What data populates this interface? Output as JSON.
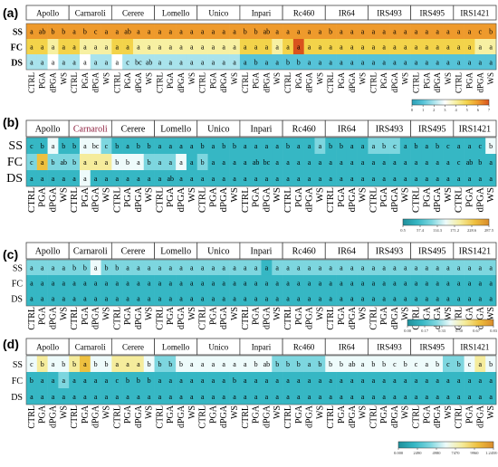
{
  "panels": [
    {
      "label": "(a)",
      "color_scale": "a",
      "colorbar_ticks": [
        "0",
        "1",
        "2",
        "3",
        "4",
        "5",
        "6",
        "7"
      ],
      "heat": [
        [
          6,
          6,
          6,
          6,
          6,
          6,
          6,
          6,
          6,
          6,
          6,
          6,
          6,
          6,
          6,
          6,
          6,
          6,
          6,
          6,
          6,
          6,
          6,
          6,
          6,
          6,
          6,
          6,
          6,
          6,
          6,
          6,
          6,
          6,
          6,
          6,
          6,
          6,
          6,
          6,
          6,
          6,
          6,
          6
        ],
        [
          5,
          5,
          4,
          5,
          5,
          4,
          4,
          4,
          5,
          5,
          4,
          4,
          4,
          4,
          4,
          4,
          4,
          4,
          4,
          4,
          5,
          5,
          5,
          4,
          5,
          7,
          5,
          5,
          5,
          5,
          5,
          5,
          5,
          5,
          5,
          5,
          5,
          5,
          5,
          5,
          5,
          5,
          4,
          4
        ],
        [
          2,
          2,
          3,
          2,
          2,
          3,
          2,
          2,
          3,
          2,
          2,
          2,
          2,
          2,
          2,
          2,
          2,
          2,
          2,
          2,
          1,
          1,
          1,
          1,
          1,
          1,
          1,
          1,
          1,
          1,
          1,
          1,
          1,
          1,
          1,
          1,
          1,
          1,
          1,
          1,
          1,
          1,
          1,
          1
        ]
      ]
    },
    {
      "label": "(b)",
      "color_scale": "b",
      "colorbar_ticks": [
        "0.5",
        "57.4",
        "114.3",
        "171.2",
        "228.6",
        "287.5"
      ],
      "heat": [
        [
          1,
          1,
          3,
          1,
          1,
          3,
          3,
          2,
          1,
          1,
          1,
          1,
          1,
          1,
          1,
          1,
          1,
          1,
          1,
          1,
          1,
          1,
          1,
          1,
          1,
          1,
          1,
          2,
          1,
          1,
          1,
          1,
          2,
          2,
          2,
          1,
          1,
          1,
          1,
          1,
          1,
          1,
          1,
          3
        ],
        [
          2,
          5,
          2,
          2,
          2,
          4,
          4,
          4,
          3,
          3,
          3,
          2,
          2,
          2,
          3,
          1,
          2,
          1,
          1,
          1,
          1,
          1,
          1,
          1,
          1,
          1,
          1,
          1,
          1,
          1,
          1,
          1,
          1,
          1,
          1,
          1,
          1,
          1,
          1,
          1,
          1,
          1,
          1,
          1
        ],
        [
          1,
          1,
          1,
          1,
          1,
          3,
          1,
          1,
          1,
          1,
          1,
          1,
          1,
          1,
          1,
          1,
          1,
          1,
          1,
          1,
          1,
          1,
          1,
          1,
          1,
          1,
          1,
          1,
          1,
          1,
          1,
          1,
          1,
          1,
          1,
          1,
          1,
          1,
          1,
          1,
          1,
          1,
          1,
          1
        ]
      ]
    },
    {
      "label": "(c)",
      "color_scale": "c",
      "colorbar_ticks": [
        "0.00",
        "0.17",
        "0.33",
        "0.50",
        "0.67",
        "0.83"
      ],
      "heat": [
        [
          2,
          2,
          2,
          2,
          2,
          2,
          3,
          2,
          2,
          2,
          2,
          2,
          2,
          2,
          2,
          2,
          2,
          2,
          2,
          2,
          2,
          2,
          1,
          2,
          2,
          2,
          2,
          2,
          2,
          2,
          2,
          2,
          2,
          2,
          2,
          2,
          2,
          2,
          2,
          2,
          2,
          2,
          2,
          2
        ],
        [
          1,
          1,
          1,
          1,
          1,
          1,
          1,
          1,
          1,
          1,
          1,
          1,
          1,
          1,
          1,
          1,
          1,
          1,
          1,
          1,
          1,
          1,
          1,
          1,
          1,
          1,
          1,
          1,
          1,
          1,
          1,
          1,
          1,
          1,
          1,
          1,
          1,
          1,
          1,
          1,
          1,
          1,
          1,
          1
        ],
        [
          1,
          1,
          1,
          1,
          1,
          1,
          1,
          1,
          1,
          1,
          1,
          1,
          1,
          1,
          1,
          1,
          1,
          1,
          1,
          1,
          1,
          1,
          1,
          1,
          1,
          1,
          1,
          1,
          1,
          1,
          1,
          1,
          1,
          1,
          1,
          1,
          1,
          1,
          1,
          1,
          1,
          1,
          1,
          1
        ]
      ]
    },
    {
      "label": "(d)",
      "color_scale": "d",
      "colorbar_ticks": [
        "0.000",
        "2490",
        "4980",
        "7470",
        "9960",
        "1.245E+4"
      ],
      "heat": [
        [
          3,
          4,
          3,
          3,
          4,
          5,
          3,
          3,
          4,
          4,
          4,
          3,
          2,
          2,
          3,
          3,
          3,
          3,
          3,
          3,
          3,
          3,
          3,
          2,
          2,
          2,
          2,
          2,
          3,
          3,
          3,
          3,
          3,
          3,
          3,
          3,
          3,
          3,
          3,
          2,
          2,
          3,
          4,
          3
        ],
        [
          1,
          1,
          1,
          2,
          1,
          1,
          1,
          1,
          1,
          1,
          1,
          1,
          1,
          1,
          1,
          1,
          1,
          1,
          1,
          1,
          1,
          1,
          1,
          1,
          1,
          1,
          1,
          1,
          1,
          1,
          1,
          1,
          1,
          1,
          1,
          1,
          1,
          1,
          1,
          1,
          1,
          1,
          1,
          1
        ],
        [
          1,
          1,
          1,
          1,
          1,
          1,
          1,
          1,
          1,
          1,
          1,
          1,
          1,
          1,
          1,
          1,
          1,
          1,
          1,
          1,
          1,
          1,
          1,
          1,
          1,
          1,
          1,
          1,
          1,
          1,
          1,
          1,
          1,
          1,
          1,
          1,
          1,
          1,
          1,
          1,
          1,
          1,
          1,
          1
        ]
      ]
    }
  ],
  "colors": {
    "scale_a": [
      "#2a9fb5",
      "#56c3d8",
      "#a9e3ec",
      "#ffffff",
      "#f7f0a2",
      "#f3d34a",
      "#ee9a2c",
      "#d9531e"
    ],
    "scale_teal": [
      "#1f8f9a",
      "#36b7c4",
      "#7dd6df",
      "#eefbfb",
      "#f5ec9c",
      "#eec03f",
      "#d98b2a"
    ]
  },
  "chart_data": {
    "type": "heatmap",
    "cultivars": [
      "Apollo",
      "Carnaroli",
      "Cerere",
      "Lomello",
      "Unico",
      "Inpari",
      "Rc460",
      "IR64",
      "IRS493",
      "IRS495",
      "IRS1421"
    ],
    "treatments": [
      "CTRL",
      "PGA",
      "dPGA",
      "WS"
    ],
    "rows": [
      "SS",
      "FC",
      "DS"
    ],
    "panels": [
      {
        "label": "(a)",
        "colorbar_ticks": [
          "0",
          "1",
          "2",
          "3",
          "4",
          "5",
          "6",
          "7"
        ],
        "letters": [
          [
            "a",
            "ab",
            "b",
            "b",
            "a",
            "b",
            "c",
            "a",
            "a",
            "ab",
            "a",
            "a",
            "a",
            "a",
            "a",
            "a",
            "a",
            "a",
            "a",
            "a",
            "b",
            "b",
            "ab",
            "a",
            "a",
            "a",
            "a",
            "a",
            "b",
            "a",
            "a",
            "a",
            "a",
            "a",
            "a",
            "a",
            "a",
            "a",
            "a",
            "a",
            "a",
            "a",
            "c",
            "b"
          ],
          [
            "a",
            "a",
            "a",
            "a",
            "a",
            "a",
            "a",
            "a",
            "a",
            "a",
            "a",
            "a",
            "a",
            "a",
            "a",
            "a",
            "a",
            "a",
            "a",
            "a",
            "a",
            "a",
            "a",
            "a",
            "a",
            "a",
            "a",
            "a",
            "a",
            "a",
            "a",
            "a",
            "a",
            "a",
            "a",
            "a",
            "a",
            "a",
            "a",
            "a",
            "a",
            "a",
            "a",
            "a"
          ],
          [
            "a",
            "a",
            "a",
            "a",
            "a",
            "a",
            "a",
            "a",
            "a",
            "c",
            "bc",
            "ab",
            "a",
            "a",
            "a",
            "a",
            "a",
            "a",
            "a",
            "a",
            "a",
            "b",
            "a",
            "a",
            "b",
            "b",
            "a",
            "a",
            "a",
            "a",
            "a",
            "a",
            "a",
            "a",
            "a",
            "a",
            "a",
            "a",
            "a",
            "a",
            "a",
            "a",
            "a",
            "a"
          ]
        ]
      },
      {
        "label": "(b)",
        "colorbar_ticks": [
          "0.5",
          "57.4",
          "114.3",
          "171.2",
          "228.6",
          "287.5"
        ],
        "letters": [
          [
            "c",
            "b",
            "a",
            "b",
            "b",
            "a",
            "bc",
            "c",
            "b",
            "a",
            "b",
            "b",
            "a",
            "a",
            "a",
            "a",
            "b",
            "a",
            "b",
            "b",
            "a",
            "a",
            "a",
            "a",
            "b",
            "a",
            "a",
            "a",
            "b",
            "b",
            "a",
            "a",
            "a",
            "b",
            "c",
            "a",
            "b",
            "a",
            "b",
            "c",
            "a",
            "a",
            "c",
            "b"
          ],
          [
            "c",
            "a",
            "b",
            "ab",
            "b",
            "a",
            "a",
            "a",
            "b",
            "b",
            "a",
            "b",
            "a",
            "a",
            "a",
            "a",
            "b",
            "a",
            "a",
            "a",
            "a",
            "ab",
            "bc",
            "a",
            "a",
            "a",
            "a",
            "a",
            "a",
            "a",
            "a",
            "a",
            "a",
            "a",
            "a",
            "a",
            "a",
            "a",
            "a",
            "a",
            "c",
            "ab",
            "b",
            "a"
          ],
          [
            "a",
            "a",
            "a",
            "a",
            "a",
            "a",
            "a",
            "a",
            "a",
            "a",
            "a",
            "a",
            "a",
            "ab",
            "a",
            "a",
            "a",
            "a",
            "a",
            "a",
            "a",
            "a",
            "a",
            "a",
            "a",
            "a",
            "a",
            "a",
            "a",
            "a",
            "a",
            "a",
            "a",
            "a",
            "a",
            "a",
            "a",
            "a",
            "a",
            "a",
            "a",
            "a",
            "a",
            "a"
          ]
        ]
      },
      {
        "label": "(c)",
        "colorbar_ticks": [
          "0.00",
          "0.17",
          "0.33",
          "0.50",
          "0.67",
          "0.83"
        ],
        "letters": [
          [
            "a",
            "a",
            "a",
            "a",
            "b",
            "b",
            "a",
            "b",
            "b",
            "a",
            "a",
            "a",
            "a",
            "a",
            "a",
            "a",
            "a",
            "a",
            "a",
            "a",
            "a",
            "a",
            "a",
            "a",
            "a",
            "a",
            "a",
            "a",
            "a",
            "a",
            "a",
            "a",
            "a",
            "a",
            "a",
            "a",
            "a",
            "a",
            "a",
            "a",
            "a",
            "a",
            "a",
            "a"
          ],
          [
            "a",
            "a",
            "a",
            "a",
            "a",
            "a",
            "a",
            "a",
            "a",
            "a",
            "a",
            "a",
            "a",
            "a",
            "a",
            "a",
            "a",
            "a",
            "a",
            "a",
            "a",
            "a",
            "a",
            "a",
            "a",
            "a",
            "a",
            "a",
            "a",
            "a",
            "a",
            "a",
            "a",
            "a",
            "a",
            "a",
            "a",
            "a",
            "a",
            "a",
            "a",
            "a",
            "a",
            "a"
          ],
          [
            "a",
            "a",
            "a",
            "a",
            "a",
            "a",
            "a",
            "a",
            "a",
            "a",
            "a",
            "a",
            "a",
            "a",
            "a",
            "a",
            "a",
            "a",
            "a",
            "a",
            "a",
            "a",
            "a",
            "a",
            "a",
            "a",
            "a",
            "a",
            "a",
            "a",
            "a",
            "a",
            "a",
            "a",
            "a",
            "a",
            "a",
            "a",
            "a",
            "a",
            "a",
            "a",
            "a",
            "a"
          ]
        ]
      },
      {
        "label": "(d)",
        "colorbar_ticks": [
          "0.000",
          "2490",
          "4980",
          "7470",
          "9960",
          "1.245E+4"
        ],
        "letters": [
          [
            "c",
            "b",
            "a",
            "b",
            "b",
            "a",
            "b",
            "b",
            "a",
            "a",
            "a",
            "b",
            "b",
            "b",
            "b",
            "a",
            "a",
            "a",
            "a",
            "a",
            "a",
            "b",
            "ab",
            "b",
            "b",
            "b",
            "a",
            "b",
            "b",
            "b",
            "ab",
            "a",
            "b",
            "b",
            "c",
            "b",
            "c",
            "a",
            "b",
            "c",
            "b",
            "c",
            "a",
            "b"
          ],
          [
            "b",
            "a",
            "a",
            "a",
            "a",
            "a",
            "a",
            "a",
            "c",
            "b",
            "b",
            "b",
            "a",
            "a",
            "a",
            "a",
            "a",
            "a",
            "a",
            "b",
            "a",
            "a",
            "a",
            "a",
            "a",
            "a",
            "a",
            "a",
            "a",
            "a",
            "a",
            "a",
            "a",
            "a",
            "a",
            "a",
            "a",
            "a",
            "a",
            "a",
            "a",
            "a",
            "a",
            "a"
          ],
          [
            "a",
            "a",
            "a",
            "a",
            "a",
            "a",
            "a",
            "a",
            "a",
            "a",
            "a",
            "a",
            "a",
            "a",
            "a",
            "a",
            "a",
            "a",
            "a",
            "a",
            "a",
            "a",
            "a",
            "a",
            "a",
            "a",
            "a",
            "a",
            "a",
            "a",
            "a",
            "a",
            "a",
            "a",
            "a",
            "a",
            "a",
            "a",
            "a",
            "a",
            "a",
            "a",
            "a",
            "a"
          ]
        ]
      }
    ]
  }
}
